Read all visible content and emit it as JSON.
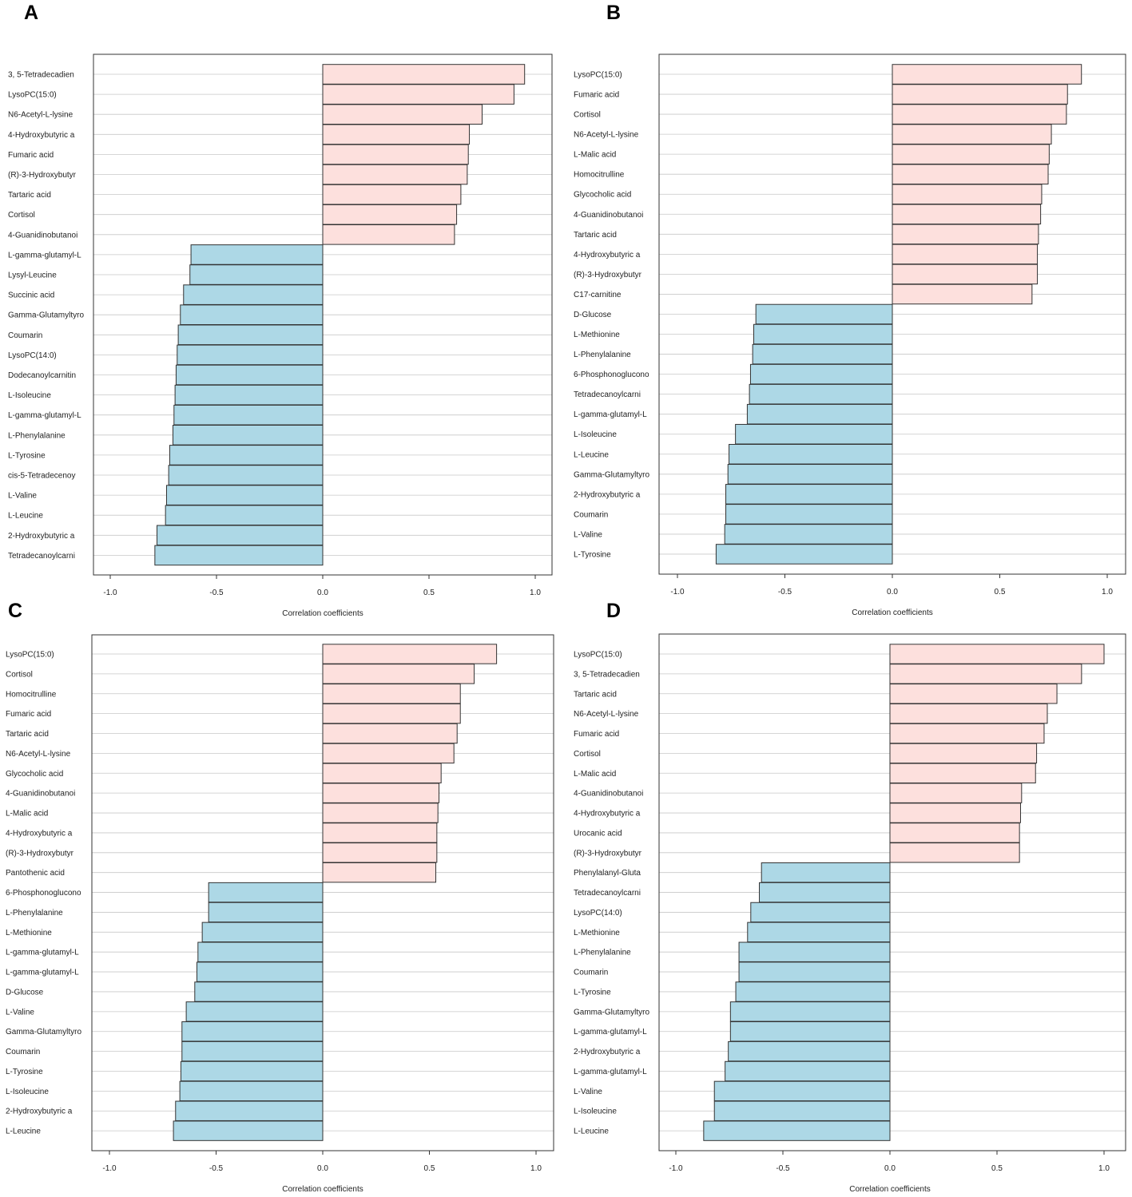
{
  "figure": {
    "x_axis_label": "Correlation coefficients",
    "colors": {
      "positive": "#fde0dd",
      "negative": "#add8e6",
      "border": "#333333"
    }
  },
  "chart_data": [
    {
      "panel": "A",
      "type": "bar",
      "orientation": "horizontal",
      "xlabel": "Correlation coefficients",
      "xlim": [
        -1.1,
        1.08
      ],
      "xticks": [
        "-1.0",
        "-0.5",
        "0.0",
        "0.5",
        "1.0"
      ],
      "categories": [
        "3, 5-Tetradecadien",
        "LysoPC(15:0)",
        "N6-Acetyl-L-lysine",
        "4-Hydroxybutyric a",
        "Fumaric acid",
        "(R)-3-Hydroxybutyr",
        "Tartaric acid",
        "Cortisol",
        "4-Guanidinobutanoi",
        "L-gamma-glutamyl-L",
        "Lysyl-Leucine",
        "Succinic acid",
        "Gamma-Glutamyltyro",
        "Coumarin",
        "LysoPC(14:0)",
        "Dodecanoylcarnitin",
        "L-Isoleucine",
        "L-gamma-glutamyl-L",
        "L-Phenylalanine",
        "L-Tyrosine",
        "cis-5-Tetradecenoy",
        "L-Valine",
        "L-Leucine",
        "2-Hydroxybutyric a",
        "Tetradecanoylcarni"
      ],
      "values": [
        0.95,
        0.9,
        0.75,
        0.69,
        0.685,
        0.68,
        0.65,
        0.63,
        0.62,
        -0.62,
        -0.625,
        -0.655,
        -0.67,
        -0.68,
        -0.685,
        -0.69,
        -0.695,
        -0.7,
        -0.705,
        -0.72,
        -0.725,
        -0.735,
        -0.74,
        -0.78,
        -0.79
      ]
    },
    {
      "panel": "B",
      "type": "bar",
      "orientation": "horizontal",
      "xlabel": "Correlation coefficients",
      "xlim": [
        -1.08,
        1.08
      ],
      "xticks": [
        "-1.0",
        "-0.5",
        "0.0",
        "0.5",
        "1.0"
      ],
      "categories": [
        "LysoPC(15:0)",
        "Fumaric acid",
        "Cortisol",
        "N6-Acetyl-L-lysine",
        "L-Malic acid",
        "Homocitrulline",
        "Glycocholic acid",
        "4-Guanidinobutanoi",
        "Tartaric acid",
        "4-Hydroxybutyric a",
        "(R)-3-Hydroxybutyr",
        "C17-carnitine",
        "D-Glucose",
        "L-Methionine",
        "L-Phenylalanine",
        "6-Phosphonoglucono",
        "Tetradecanoylcarni",
        "L-gamma-glutamyl-L",
        "L-Isoleucine",
        "L-Leucine",
        "Gamma-Glutamyltyro",
        "2-Hydroxybutyric a",
        "Coumarin",
        "L-Valine",
        "L-Tyrosine"
      ],
      "values": [
        0.88,
        0.815,
        0.81,
        0.74,
        0.73,
        0.725,
        0.695,
        0.69,
        0.68,
        0.675,
        0.675,
        0.65,
        -0.635,
        -0.645,
        -0.65,
        -0.66,
        -0.665,
        -0.675,
        -0.73,
        -0.76,
        -0.765,
        -0.775,
        -0.775,
        -0.78,
        -0.82
      ]
    },
    {
      "panel": "C",
      "type": "bar",
      "orientation": "horizontal",
      "xlabel": "Correlation coefficients",
      "xlim": [
        -1.1,
        1.08
      ],
      "xticks": [
        "-1.0",
        "-0.5",
        "0.0",
        "0.5",
        "1.0"
      ],
      "categories": [
        "LysoPC(15:0)",
        "Cortisol",
        "Homocitrulline",
        "Fumaric acid",
        "Tartaric acid",
        "N6-Acetyl-L-lysine",
        "Glycocholic acid",
        "4-Guanidinobutanoi",
        "L-Malic acid",
        "4-Hydroxybutyric a",
        "(R)-3-Hydroxybutyr",
        "Pantothenic acid",
        "6-Phosphonoglucono",
        "L-Phenylalanine",
        "L-Methionine",
        "L-gamma-glutamyl-L",
        "L-gamma-glutamyl-L",
        "D-Glucose",
        "L-Valine",
        "Gamma-Glutamyltyro",
        "Coumarin",
        "L-Tyrosine",
        "L-Isoleucine",
        "2-Hydroxybutyric a",
        "L-Leucine"
      ],
      "values": [
        0.815,
        0.71,
        0.645,
        0.645,
        0.63,
        0.615,
        0.555,
        0.545,
        0.54,
        0.535,
        0.535,
        0.53,
        -0.535,
        -0.535,
        -0.565,
        -0.585,
        -0.59,
        -0.6,
        -0.64,
        -0.66,
        -0.66,
        -0.665,
        -0.67,
        -0.69,
        -0.7
      ]
    },
    {
      "panel": "D",
      "type": "bar",
      "orientation": "horizontal",
      "xlabel": "Correlation coefficients",
      "xlim": [
        -1.08,
        1.08
      ],
      "xticks": [
        "-1.0",
        "-0.5",
        "0.0",
        "0.5",
        "1.0"
      ],
      "categories": [
        "LysoPC(15:0)",
        "3, 5-Tetradecadien",
        "Tartaric acid",
        "N6-Acetyl-L-lysine",
        "Fumaric acid",
        "Cortisol",
        "L-Malic acid",
        "4-Guanidinobutanoi",
        "4-Hydroxybutyric a",
        "Urocanic acid",
        "(R)-3-Hydroxybutyr",
        "Phenylalanyl-Gluta",
        "Tetradecanoylcarni",
        "LysoPC(14:0)",
        "L-Methionine",
        "L-Phenylalanine",
        "Coumarin",
        "L-Tyrosine",
        "Gamma-Glutamyltyro",
        "L-gamma-glutamyl-L",
        "2-Hydroxybutyric a",
        "L-gamma-glutamyl-L",
        "L-Valine",
        "L-Isoleucine",
        "L-Leucine"
      ],
      "values": [
        1.0,
        0.895,
        0.78,
        0.735,
        0.72,
        0.685,
        0.68,
        0.615,
        0.61,
        0.605,
        0.605,
        -0.6,
        -0.61,
        -0.65,
        -0.665,
        -0.705,
        -0.705,
        -0.72,
        -0.745,
        -0.745,
        -0.755,
        -0.77,
        -0.82,
        -0.82,
        -0.87
      ]
    }
  ]
}
